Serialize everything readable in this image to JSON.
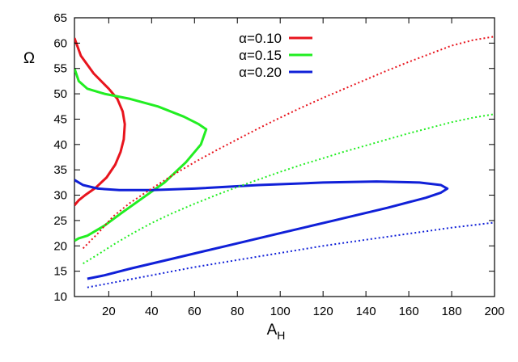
{
  "chart_data": {
    "type": "line",
    "xlabel": "A",
    "xlabel_sub": "H",
    "ylabel": "Ω",
    "xlim": [
      4,
      200
    ],
    "ylim": [
      10,
      65
    ],
    "x_ticks": [
      20,
      40,
      60,
      80,
      100,
      120,
      140,
      160,
      180,
      200
    ],
    "y_ticks": [
      10,
      15,
      20,
      25,
      30,
      35,
      40,
      45,
      50,
      55,
      60,
      65
    ],
    "grid": false,
    "legend_position": "top-center",
    "series": [
      {
        "name": "α=0.10",
        "color": "#e8141d",
        "style": "solid",
        "points": [
          [
            4,
            61.0
          ],
          [
            7,
            57.5
          ],
          [
            13,
            54.0
          ],
          [
            20,
            51.0
          ],
          [
            24,
            49.0
          ],
          [
            26.5,
            46.5
          ],
          [
            27.5,
            44.0
          ],
          [
            27,
            41.0
          ],
          [
            25.5,
            38.5
          ],
          [
            23,
            36.0
          ],
          [
            19,
            33.5
          ],
          [
            14,
            31.5
          ],
          [
            9,
            30.0
          ],
          [
            6,
            29.0
          ],
          [
            4,
            28.0
          ]
        ]
      },
      {
        "name": "α=0.15",
        "color": "#22ee22",
        "style": "solid",
        "points": [
          [
            4,
            55.0
          ],
          [
            6,
            52.5
          ],
          [
            10,
            51.0
          ],
          [
            18,
            50.0
          ],
          [
            30,
            49.0
          ],
          [
            43,
            47.5
          ],
          [
            55,
            45.5
          ],
          [
            62,
            44.0
          ],
          [
            65.5,
            43.0
          ],
          [
            63,
            40.0
          ],
          [
            56,
            36.5
          ],
          [
            46,
            32.5
          ],
          [
            36,
            29.5
          ],
          [
            26,
            26.5
          ],
          [
            18,
            24.0
          ],
          [
            10,
            22.0
          ],
          [
            6,
            21.5
          ],
          [
            4,
            21.0
          ]
        ]
      },
      {
        "name": "α=0.20",
        "color": "#1020d8",
        "style": "solid",
        "points": [
          [
            4,
            33.0
          ],
          [
            8,
            32.0
          ],
          [
            15,
            31.3
          ],
          [
            25,
            31.0
          ],
          [
            40,
            31.0
          ],
          [
            60,
            31.3
          ],
          [
            90,
            32.0
          ],
          [
            120,
            32.5
          ],
          [
            145,
            32.7
          ],
          [
            165,
            32.5
          ],
          [
            175,
            32.0
          ],
          [
            178,
            31.3
          ],
          [
            175,
            30.5
          ],
          [
            168,
            29.5
          ],
          [
            150,
            27.5
          ],
          [
            125,
            25.0
          ],
          [
            100,
            22.5
          ],
          [
            75,
            20.0
          ],
          [
            50,
            17.5
          ],
          [
            30,
            15.5
          ],
          [
            18,
            14.2
          ],
          [
            10,
            13.5
          ]
        ]
      },
      {
        "name": "",
        "color": "#e8141d",
        "style": "dotted",
        "points": [
          [
            8,
            19.5
          ],
          [
            15,
            22.5
          ],
          [
            22,
            25.8
          ],
          [
            30,
            28.5
          ],
          [
            40,
            31.3
          ],
          [
            50,
            34.0
          ],
          [
            60,
            36.5
          ],
          [
            70,
            38.8
          ],
          [
            80,
            41.0
          ],
          [
            90,
            43.2
          ],
          [
            100,
            45.3
          ],
          [
            110,
            47.3
          ],
          [
            120,
            49.2
          ],
          [
            130,
            51.0
          ],
          [
            140,
            52.8
          ],
          [
            150,
            54.6
          ],
          [
            160,
            56.3
          ],
          [
            170,
            57.9
          ],
          [
            180,
            59.5
          ],
          [
            190,
            60.6
          ],
          [
            200,
            61.3
          ]
        ]
      },
      {
        "name": "",
        "color": "#22ee22",
        "style": "dotted",
        "points": [
          [
            8,
            16.5
          ],
          [
            15,
            18.3
          ],
          [
            22,
            20.2
          ],
          [
            30,
            22.2
          ],
          [
            40,
            24.5
          ],
          [
            50,
            26.5
          ],
          [
            60,
            28.3
          ],
          [
            70,
            30.0
          ],
          [
            80,
            31.6
          ],
          [
            90,
            33.1
          ],
          [
            100,
            34.6
          ],
          [
            110,
            36.0
          ],
          [
            120,
            37.3
          ],
          [
            130,
            38.6
          ],
          [
            140,
            39.8
          ],
          [
            150,
            41.0
          ],
          [
            160,
            42.2
          ],
          [
            170,
            43.3
          ],
          [
            180,
            44.4
          ],
          [
            190,
            45.3
          ],
          [
            200,
            46.0
          ]
        ]
      },
      {
        "name": "",
        "color": "#1020d8",
        "style": "dotted",
        "points": [
          [
            10,
            11.8
          ],
          [
            20,
            12.6
          ],
          [
            30,
            13.4
          ],
          [
            40,
            14.2
          ],
          [
            50,
            15.0
          ],
          [
            60,
            15.8
          ],
          [
            70,
            16.5
          ],
          [
            80,
            17.2
          ],
          [
            90,
            17.9
          ],
          [
            100,
            18.6
          ],
          [
            110,
            19.3
          ],
          [
            120,
            20.0
          ],
          [
            130,
            20.6
          ],
          [
            140,
            21.2
          ],
          [
            150,
            21.8
          ],
          [
            160,
            22.4
          ],
          [
            170,
            23.0
          ],
          [
            180,
            23.6
          ],
          [
            190,
            24.1
          ],
          [
            200,
            24.6
          ]
        ]
      }
    ]
  }
}
